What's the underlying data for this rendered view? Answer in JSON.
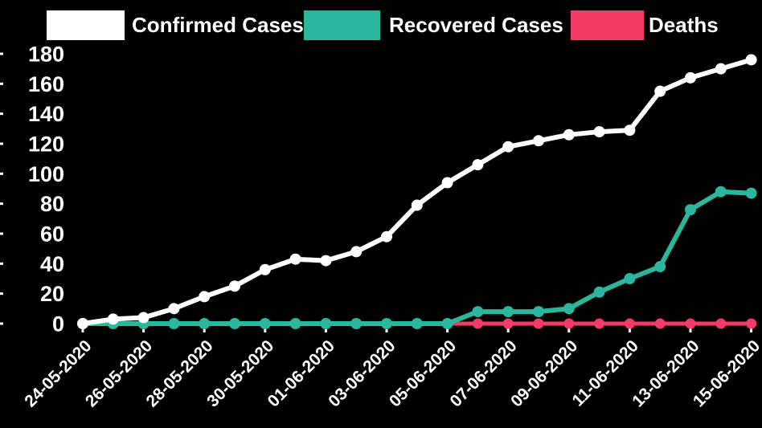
{
  "background_color": "#000000",
  "text_color": "#ffffff",
  "chart_data": {
    "type": "line",
    "title": "",
    "xlabel": "",
    "ylabel": "",
    "grid": false,
    "legend_position": "top",
    "ylim": [
      0,
      180
    ],
    "yticks": [
      0,
      20,
      40,
      60,
      80,
      100,
      120,
      140,
      160,
      180
    ],
    "categories": [
      "24-05-2020",
      "25-05-2020",
      "26-05-2020",
      "27-05-2020",
      "28-05-2020",
      "29-05-2020",
      "30-05-2020",
      "31-05-2020",
      "01-06-2020",
      "02-06-2020",
      "03-06-2020",
      "04-06-2020",
      "05-06-2020",
      "06-06-2020",
      "07-06-2020",
      "08-06-2020",
      "09-06-2020",
      "10-06-2020",
      "11-06-2020",
      "12-06-2020",
      "13-06-2020",
      "14-06-2020",
      "15-06-2020"
    ],
    "x_tick_indices": [
      0,
      2,
      4,
      6,
      8,
      10,
      12,
      14,
      16,
      18,
      20,
      22
    ],
    "series": [
      {
        "name": "Confirmed Cases",
        "color": "#ffffff",
        "values": [
          0,
          3,
          4,
          10,
          18,
          25,
          36,
          43,
          42,
          48,
          58,
          79,
          94,
          106,
          118,
          122,
          126,
          128,
          129,
          155,
          164,
          170,
          176
        ]
      },
      {
        "name": "Recovered Cases",
        "color": "#2ab79e",
        "values": [
          0,
          0,
          0,
          0,
          0,
          0,
          0,
          0,
          0,
          0,
          0,
          0,
          0,
          8,
          8,
          8,
          10,
          21,
          30,
          38,
          76,
          88,
          87
        ]
      },
      {
        "name": "Deaths",
        "color": "#f43a66",
        "values": [
          0,
          0,
          0,
          0,
          0,
          0,
          0,
          0,
          0,
          0,
          0,
          0,
          0,
          0,
          0,
          0,
          0,
          0,
          0,
          0,
          0,
          0,
          0
        ]
      }
    ]
  }
}
